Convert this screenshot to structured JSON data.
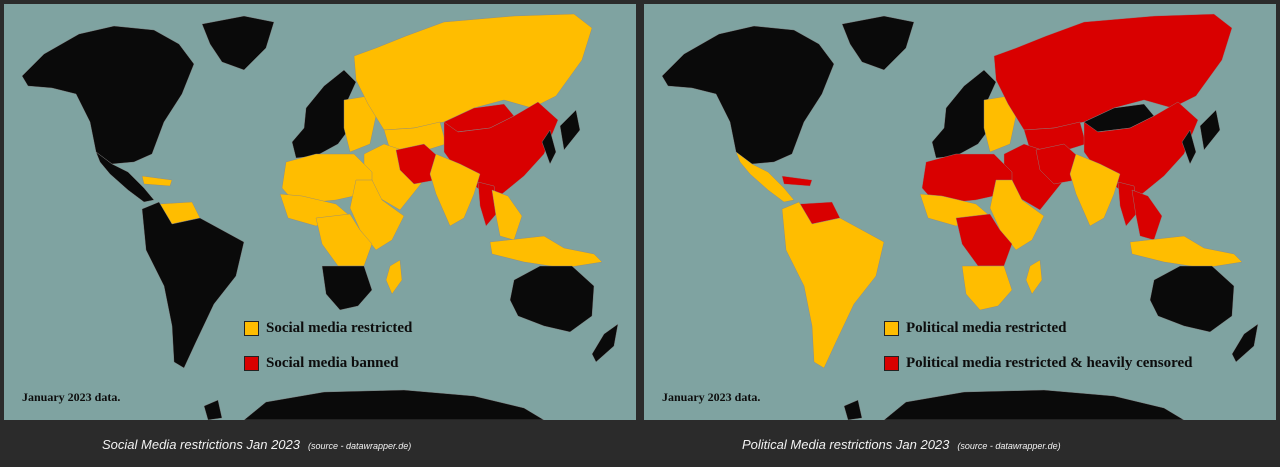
{
  "colors": {
    "ocean": "#7fa3a1",
    "land_unrestricted": "#0a0a0a",
    "restricted": "#ffbd00",
    "banned": "#d90000",
    "frame": "#2b2b2b"
  },
  "panels": [
    {
      "legend": [
        {
          "label": "Social media restricted",
          "color": "#ffbd00"
        },
        {
          "label": "Social media banned",
          "color": "#d90000"
        }
      ],
      "note": "January 2023 data.",
      "caption": "Social Media restrictions Jan 2023",
      "source": "(source - datawrapper.de)",
      "region_status": {
        "north_america": "none",
        "central_america": "none",
        "south_america": "none",
        "venezuela": "restricted",
        "caribbean": "restricted",
        "greenland": "none",
        "western_europe": "none",
        "eastern_europe": "restricted",
        "russia": "restricted",
        "north_africa": "restricted",
        "west_africa": "restricted",
        "central_africa": "restricted",
        "east_africa": "restricted",
        "southern_africa": "none",
        "middle_east": "restricted",
        "iran": "banned",
        "central_asia": "restricted",
        "india": "restricted",
        "china": "banned",
        "mongolia": "banned",
        "korea_japan": "none",
        "myanmar": "banned",
        "southeast_asia": "restricted",
        "indonesia": "restricted",
        "australia": "none",
        "new_zealand": "none",
        "antarctica": "none",
        "madagascar": "restricted"
      }
    },
    {
      "legend": [
        {
          "label": "Political media restricted",
          "color": "#ffbd00"
        },
        {
          "label": "Political media restricted & heavily censored",
          "color": "#d90000"
        }
      ],
      "note": "January 2023 data.",
      "caption": "Political Media restrictions Jan 2023",
      "source": "(source - datawrapper.de)",
      "region_status": {
        "north_america": "none",
        "central_america": "restricted",
        "south_america": "restricted",
        "venezuela": "banned",
        "caribbean": "banned",
        "greenland": "none",
        "western_europe": "none",
        "eastern_europe": "restricted",
        "russia": "banned",
        "north_africa": "banned",
        "west_africa": "restricted",
        "central_africa": "banned",
        "east_africa": "restricted",
        "southern_africa": "restricted",
        "middle_east": "banned",
        "iran": "banned",
        "central_asia": "banned",
        "india": "restricted",
        "china": "banned",
        "mongolia": "none",
        "korea_japan": "none",
        "myanmar": "banned",
        "southeast_asia": "banned",
        "indonesia": "restricted",
        "australia": "none",
        "new_zealand": "none",
        "antarctica": "none",
        "madagascar": "restricted"
      }
    }
  ]
}
